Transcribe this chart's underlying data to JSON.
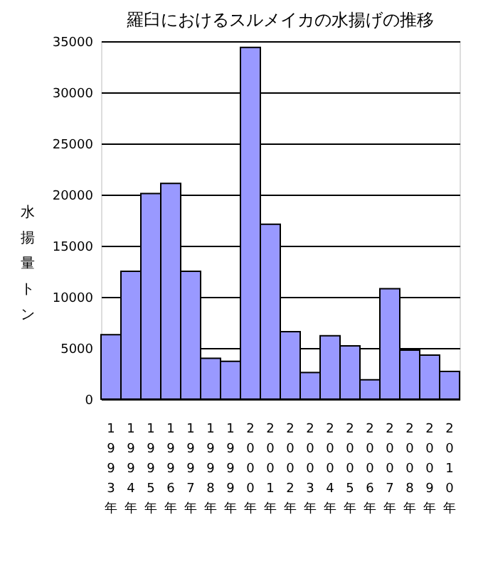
{
  "chart_data": {
    "type": "bar",
    "title": "羅臼におけるスルメイカの水揚げの推移",
    "ylabel": "水揚量トン",
    "categories": [
      "1993年",
      "1994年",
      "1995年",
      "1996年",
      "1997年",
      "1998年",
      "1999年",
      "2000年",
      "2001年",
      "2002年",
      "2003年",
      "2004年",
      "2005年",
      "2006年",
      "2007年",
      "2008年",
      "2009年",
      "2010年"
    ],
    "values": [
      6300,
      12500,
      20100,
      21100,
      12500,
      4000,
      3700,
      34400,
      17100,
      6600,
      2600,
      6200,
      5200,
      1900,
      10800,
      4800,
      4300,
      2700
    ],
    "color": "#9999ff",
    "ylim": [
      0,
      35000
    ],
    "yticks": [
      0,
      5000,
      10000,
      15000,
      20000,
      25000,
      30000,
      35000
    ],
    "grid": "y"
  }
}
